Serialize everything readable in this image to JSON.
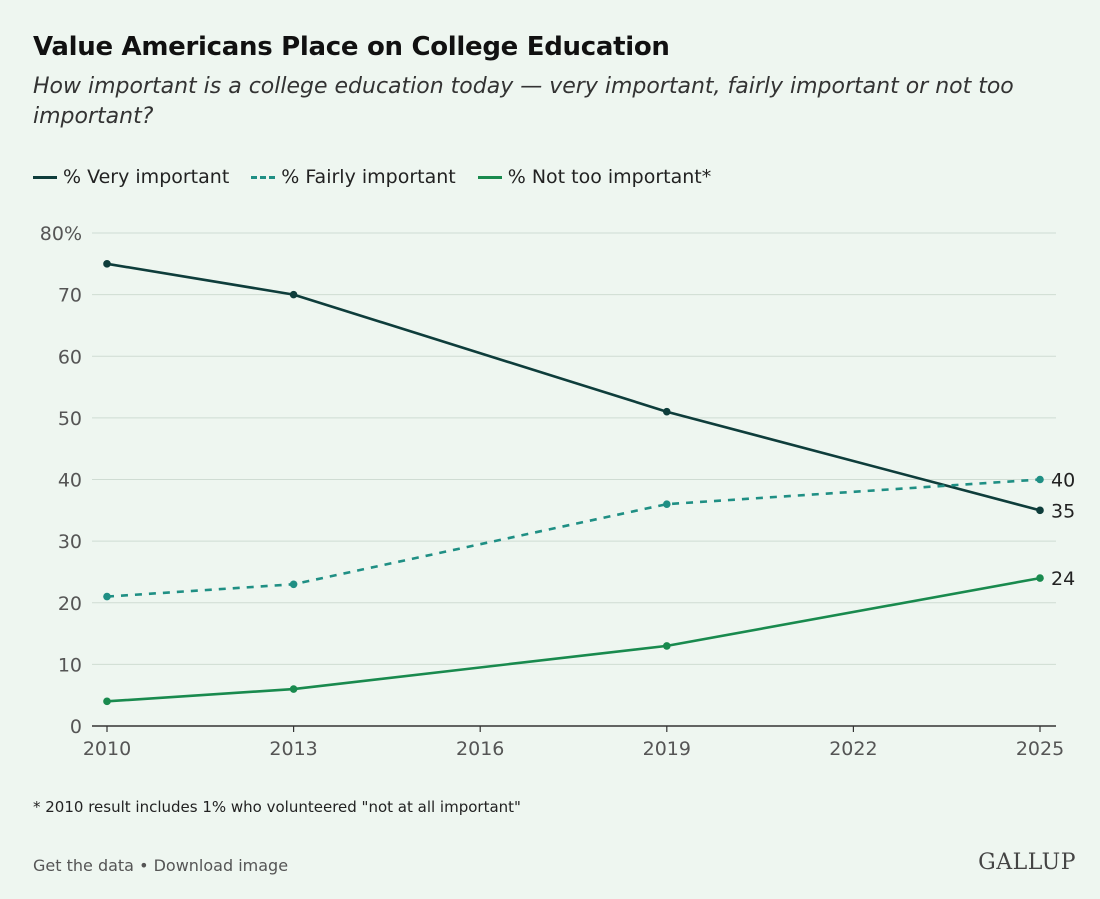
{
  "colors": {
    "very": "#0e3d3b",
    "fairly": "#1f8f84",
    "not": "#198a4e",
    "grid": "#cfdcd3",
    "axis": "#333333"
  },
  "chart_data": {
    "type": "line",
    "title": "Value Americans Place on College Education",
    "subtitle": "How important is a college education today — very important, fairly important or not too important?",
    "x": [
      2010,
      2013,
      2019,
      2025
    ],
    "xticks": [
      "2010",
      "2013",
      "2016",
      "2019",
      "2022",
      "2025"
    ],
    "xlim": [
      2010,
      2025
    ],
    "yticks": [
      "0",
      "10",
      "20",
      "30",
      "40",
      "50",
      "60",
      "70",
      "80%"
    ],
    "ylim": [
      0,
      80
    ],
    "grid": true,
    "legend_placement": "top-left",
    "series": [
      {
        "name": "% Very important",
        "key": "very",
        "values": [
          75,
          70,
          51,
          35
        ],
        "end_label": "35",
        "dashed": false
      },
      {
        "name": "% Fairly important",
        "key": "fairly",
        "values": [
          21,
          23,
          36,
          40
        ],
        "end_label": "40",
        "dashed": true
      },
      {
        "name": "% Not too important*",
        "key": "not",
        "values": [
          4,
          6,
          13,
          24
        ],
        "end_label": "24",
        "dashed": false
      }
    ],
    "footnote": "* 2010 result includes 1% who volunteered \"not at all important\""
  },
  "links": {
    "get_data": "Get the data",
    "sep": " • ",
    "download": "Download image"
  },
  "logo": "GALLUP"
}
